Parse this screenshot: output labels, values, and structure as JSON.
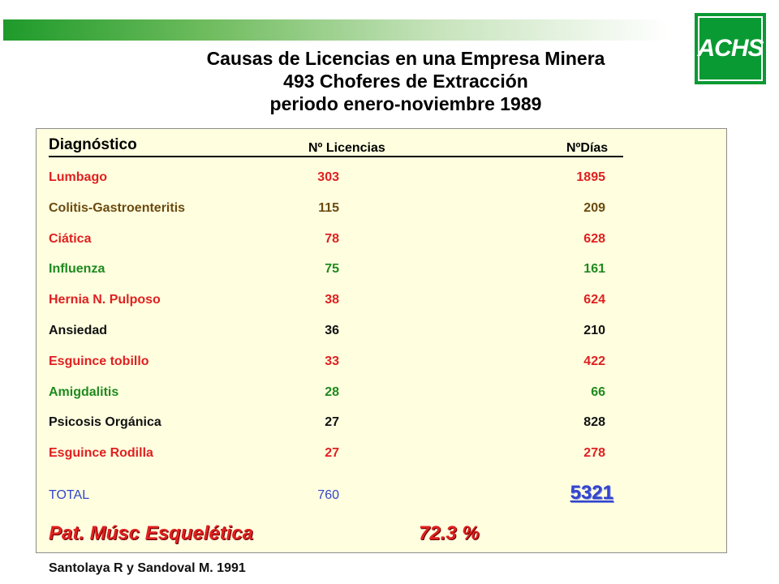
{
  "title": {
    "line1": "Causas de Licencias en una Empresa Minera",
    "line2": "493 Choferes de Extracción",
    "line3": "periodo enero-noviembre 1989"
  },
  "logo": {
    "text": "ACHS",
    "color": "#0a9a33"
  },
  "table": {
    "headers": {
      "diagnosis": "Diagnóstico",
      "licenses": "Nº Licencias",
      "days": "NºDías"
    },
    "rows": [
      {
        "diagnosis": "Lumbago",
        "licenses": "303",
        "days": "1895",
        "color": "#e02020"
      },
      {
        "diagnosis": "Colitis-Gastroenteritis",
        "licenses": "115",
        "days": "209",
        "color": "#6b4a10"
      },
      {
        "diagnosis": "Ciática",
        "licenses": "78",
        "days": "628",
        "color": "#e02020"
      },
      {
        "diagnosis": "Influenza",
        "licenses": "75",
        "days": "161",
        "color": "#1e8a1e"
      },
      {
        "diagnosis": "Hernia N. Pulposo",
        "licenses": "38",
        "days": "624",
        "color": "#e02020"
      },
      {
        "diagnosis": "Ansiedad",
        "licenses": "36",
        "days": "210",
        "color": "#111111"
      },
      {
        "diagnosis": "Esguince tobillo",
        "licenses": "33",
        "days": "422",
        "color": "#e02020"
      },
      {
        "diagnosis": "Amigdalitis",
        "licenses": "28",
        "days": "66",
        "color": "#1e8a1e"
      },
      {
        "diagnosis": "Psicosis Orgánica",
        "licenses": "27",
        "days": "828",
        "color": "#111111"
      },
      {
        "diagnosis": "Esguince Rodilla",
        "licenses": "27",
        "days": "278",
        "color": "#e02020"
      }
    ],
    "total": {
      "label": "TOTAL",
      "licenses": "760",
      "days": "5321"
    },
    "summary": {
      "label": "Pat. Músc Esquelética",
      "value": "72.3 %"
    }
  },
  "source": "Santolaya R y Sandoval M. 1991"
}
